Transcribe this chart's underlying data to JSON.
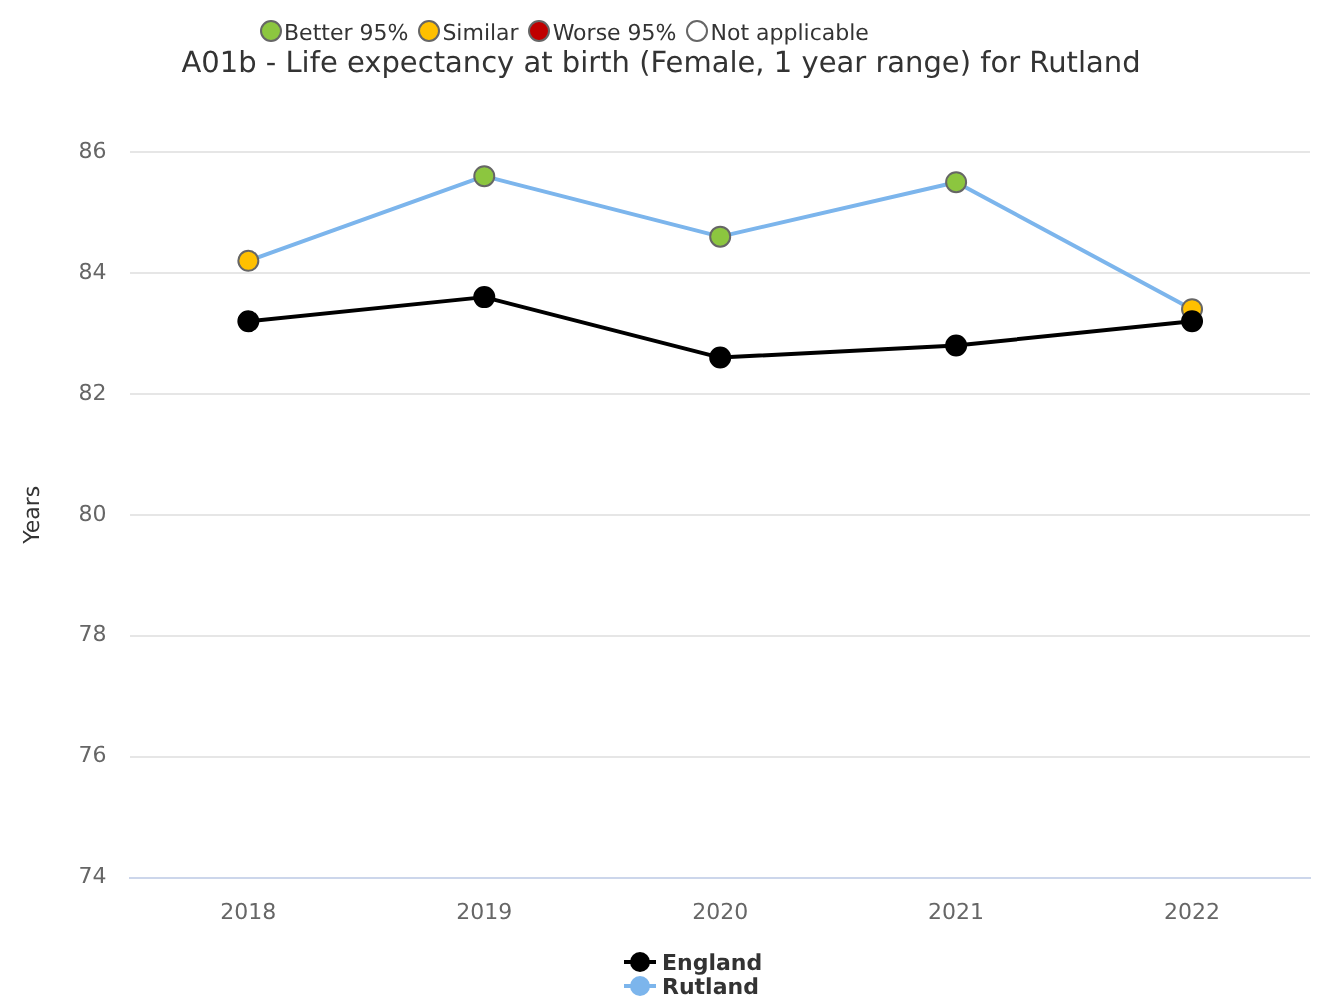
{
  "chart_data": {
    "type": "line",
    "title": "A01b - Life expectancy at birth (Female, 1 year range) for Rutland",
    "ylabel": "Years",
    "categories": [
      "2018",
      "2019",
      "2020",
      "2021",
      "2022"
    ],
    "ylim": [
      74,
      86
    ],
    "yticks": [
      74,
      76,
      78,
      80,
      82,
      84,
      86
    ],
    "annotations": [
      "Better 95%",
      "Similar",
      "Worse 95%",
      "Not applicable"
    ],
    "grid": "y",
    "legend": "bottom",
    "marker": "circle",
    "line_style": "solid",
    "series": [
      {
        "name": "England",
        "color": "#000000",
        "values": [
          83.2,
          83.6,
          82.6,
          82.8,
          83.2
        ]
      },
      {
        "name": "Rutland",
        "color": "#7cb5ec",
        "colors": [
          "#ffc000",
          "#8cc63f",
          "#8cc63f",
          "#8cc63f",
          "#ffc000"
        ],
        "values": [
          84.2,
          85.6,
          84.6,
          85.5,
          83.4
        ]
      }
    ]
  }
}
